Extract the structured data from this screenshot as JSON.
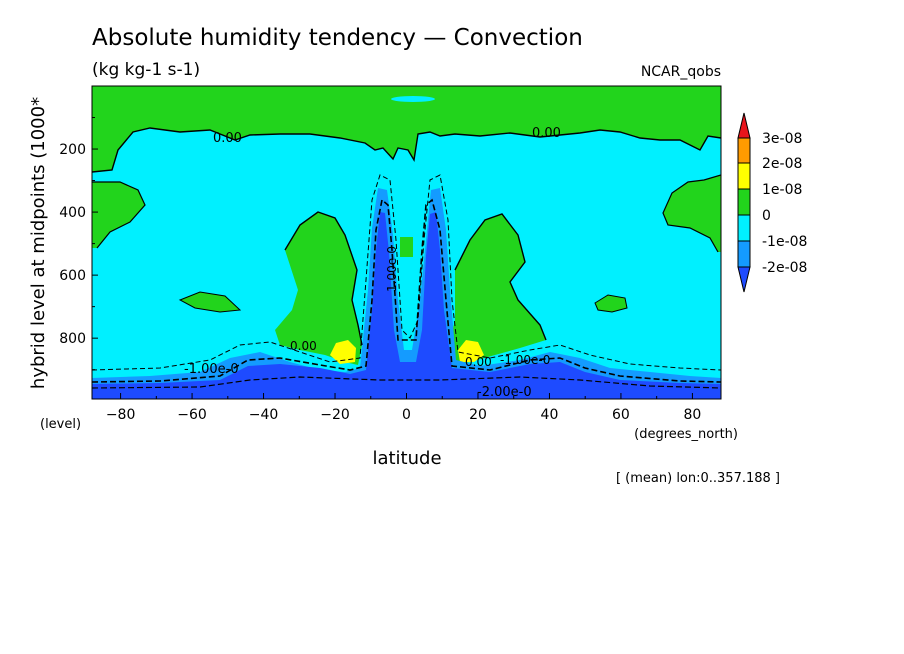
{
  "chart_data": {
    "type": "heatmap",
    "title": "Absolute humidity tendency — Convection",
    "units": "(kg kg-1 s-1)",
    "source": "NCAR_qobs",
    "xlabel": "latitude",
    "x_unit": "(degrees_north)",
    "ylabel": "hybrid level at midpoints (1000*",
    "y_unit": "(level)",
    "note": "[ (mean) lon:0..357.188 ]",
    "xlim": [
      -88,
      88
    ],
    "ylim": [
      993,
      0
    ],
    "x_ticks": [
      -80,
      -60,
      -40,
      -20,
      0,
      20,
      40,
      60,
      80
    ],
    "y_ticks": [
      200,
      400,
      600,
      800
    ],
    "colorbar": {
      "labels": [
        "3e-08",
        "2e-08",
        "1e-08",
        "0",
        "-1e-08",
        "-2e-08"
      ],
      "colors": {
        "gt3": "#e8141c",
        "c2_3": "#ff9b00",
        "c1_2": "#ffff00",
        "c0_1": "#22d41c",
        "cm1_0": "#00f0ff",
        "cm2_m1": "#149bff",
        "ltm2": "#1e4bff"
      }
    },
    "contour_labels": [
      "0.00",
      "0.00",
      "-1.00e-0",
      "-2.00e-0",
      "1.00e-0",
      "0.00",
      "-1.00e-0",
      "0.00"
    ]
  }
}
